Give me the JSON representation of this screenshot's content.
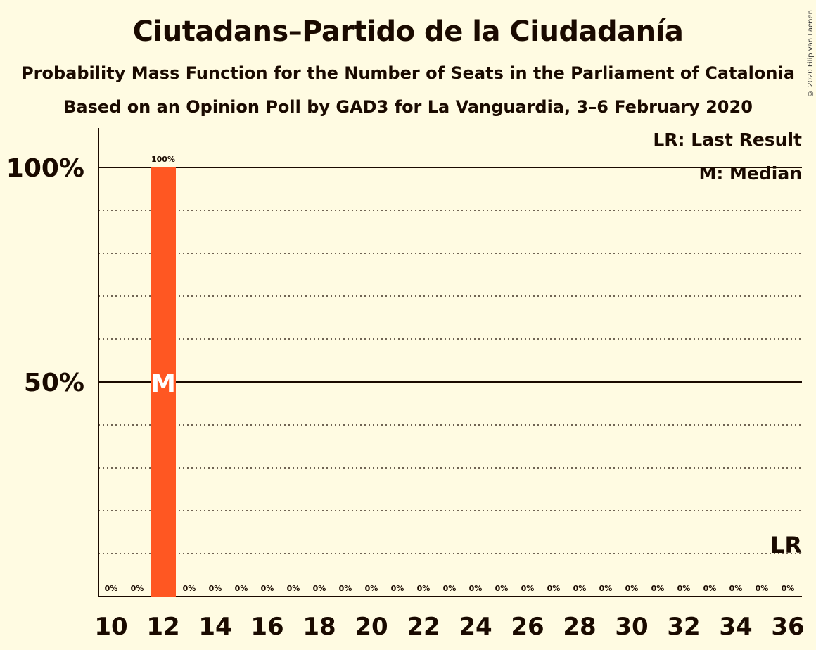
{
  "header": {
    "title": "Ciutadans–Partido de la Ciudadanía",
    "subtitle_1": "Probability Mass Function for the Number of Seats in the Parliament of Catalonia",
    "subtitle_2": "Based on an Opinion Poll by GAD3 for La Vanguardia, 3–6 February 2020",
    "copyright": "© 2020 Filip van Laenen"
  },
  "legend": {
    "last_result": "LR: Last Result",
    "median": "M: Median"
  },
  "colors": {
    "background": "#FFFBE2",
    "bar": "#FF5722",
    "text": "#1a0a00"
  },
  "chart_data": {
    "type": "bar",
    "x": [
      10,
      11,
      12,
      13,
      14,
      15,
      16,
      17,
      18,
      19,
      20,
      21,
      22,
      23,
      24,
      25,
      26,
      27,
      28,
      29,
      30,
      31,
      32,
      33,
      34,
      35,
      36
    ],
    "values": [
      0,
      0,
      100,
      0,
      0,
      0,
      0,
      0,
      0,
      0,
      0,
      0,
      0,
      0,
      0,
      0,
      0,
      0,
      0,
      0,
      0,
      0,
      0,
      0,
      0,
      0,
      0
    ],
    "data_labels": [
      "0%",
      "0%",
      "100%",
      "0%",
      "0%",
      "0%",
      "0%",
      "0%",
      "0%",
      "0%",
      "0%",
      "0%",
      "0%",
      "0%",
      "0%",
      "0%",
      "0%",
      "0%",
      "0%",
      "0%",
      "0%",
      "0%",
      "0%",
      "0%",
      "0%",
      "0%",
      "0%"
    ],
    "x_tick_labels": [
      "10",
      "12",
      "14",
      "16",
      "18",
      "20",
      "22",
      "24",
      "26",
      "28",
      "30",
      "32",
      "34",
      "36"
    ],
    "y_ticks": [
      {
        "value": 50,
        "label": "50%"
      },
      {
        "value": 100,
        "label": "100%"
      }
    ],
    "ylim": [
      0,
      110
    ],
    "minor_gridlines": [
      10,
      20,
      30,
      40,
      60,
      70,
      80,
      90
    ],
    "median": {
      "x": 12,
      "label": "M"
    },
    "last_result": {
      "x": 36,
      "label": "LR"
    },
    "unit": "%"
  }
}
